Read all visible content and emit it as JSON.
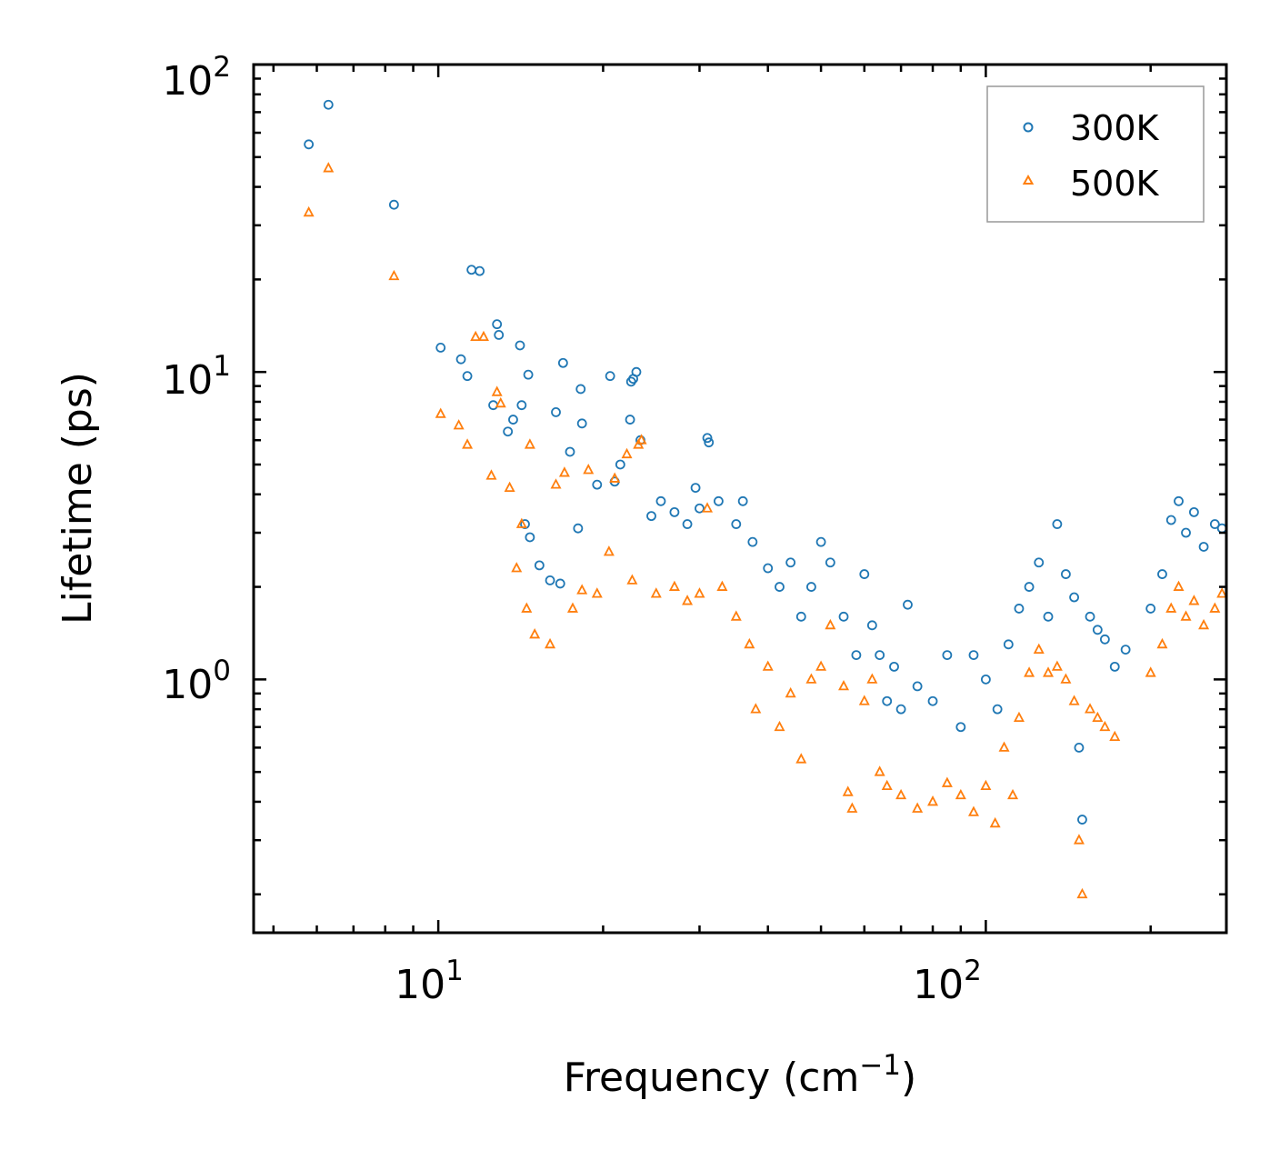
{
  "chart_data": {
    "type": "scatter",
    "title": "",
    "xlabel": "Frequency (cm",
    "xlabel_sup": "−1",
    "xlabel_end": ")",
    "ylabel": "Lifetime (ps)",
    "xscale": "log",
    "yscale": "log",
    "xlim": [
      4.6,
      275
    ],
    "ylim": [
      0.15,
      100
    ],
    "x_ticks": [
      {
        "value": 10,
        "base": "10",
        "exp": "1"
      },
      {
        "value": 100,
        "base": "10",
        "exp": "2"
      }
    ],
    "y_ticks": [
      {
        "value": 1,
        "base": "10",
        "exp": "0"
      },
      {
        "value": 10,
        "base": "10",
        "exp": "1"
      },
      {
        "value": 100,
        "base": "10",
        "exp": "2"
      }
    ],
    "legend_position": "top-right",
    "series": [
      {
        "name": "300K",
        "marker": "circle-open",
        "color": "#1f77b4",
        "points": [
          [
            5.8,
            55
          ],
          [
            6.3,
            74
          ],
          [
            8.3,
            35
          ],
          [
            10.1,
            12
          ],
          [
            11.0,
            11
          ],
          [
            11.3,
            9.7
          ],
          [
            11.5,
            21.5
          ],
          [
            11.9,
            21.3
          ],
          [
            12.6,
            7.8
          ],
          [
            12.8,
            14.3
          ],
          [
            12.9,
            13.2
          ],
          [
            13.4,
            6.4
          ],
          [
            13.7,
            7.0
          ],
          [
            14.1,
            12.2
          ],
          [
            14.2,
            7.8
          ],
          [
            14.4,
            3.2
          ],
          [
            14.6,
            9.8
          ],
          [
            14.7,
            2.9
          ],
          [
            15.3,
            2.35
          ],
          [
            16.0,
            2.1
          ],
          [
            16.4,
            7.4
          ],
          [
            16.7,
            2.05
          ],
          [
            16.9,
            10.7
          ],
          [
            17.4,
            5.5
          ],
          [
            18.0,
            3.1
          ],
          [
            18.2,
            8.8
          ],
          [
            18.3,
            6.8
          ],
          [
            19.5,
            4.3
          ],
          [
            20.6,
            9.7
          ],
          [
            21.0,
            4.4
          ],
          [
            21.5,
            5.0
          ],
          [
            22.4,
            7.0
          ],
          [
            22.5,
            9.3
          ],
          [
            22.7,
            9.5
          ],
          [
            23.0,
            10.0
          ],
          [
            23.4,
            6.0
          ],
          [
            24.5,
            3.4
          ],
          [
            25.5,
            3.8
          ],
          [
            27.0,
            3.5
          ],
          [
            28.5,
            3.2
          ],
          [
            29.5,
            4.2
          ],
          [
            30.0,
            3.6
          ],
          [
            31.0,
            6.1
          ],
          [
            31.2,
            5.9
          ],
          [
            32.5,
            3.8
          ],
          [
            35.0,
            3.2
          ],
          [
            36.0,
            3.8
          ],
          [
            37.5,
            2.8
          ],
          [
            40.0,
            2.3
          ],
          [
            42.0,
            2.0
          ],
          [
            44.0,
            2.4
          ],
          [
            46.0,
            1.6
          ],
          [
            48.0,
            2.0
          ],
          [
            50.0,
            2.8
          ],
          [
            52.0,
            2.4
          ],
          [
            55.0,
            1.6
          ],
          [
            58.0,
            1.2
          ],
          [
            60.0,
            2.2
          ],
          [
            62.0,
            1.5
          ],
          [
            64.0,
            1.2
          ],
          [
            66.0,
            0.85
          ],
          [
            68.0,
            1.1
          ],
          [
            70.0,
            0.8
          ],
          [
            72.0,
            1.75
          ],
          [
            75.0,
            0.95
          ],
          [
            80.0,
            0.85
          ],
          [
            85.0,
            1.2
          ],
          [
            90.0,
            0.7
          ],
          [
            95.0,
            1.2
          ],
          [
            100.0,
            1.0
          ],
          [
            105.0,
            0.8
          ],
          [
            110.0,
            1.3
          ],
          [
            115.0,
            1.7
          ],
          [
            120.0,
            2.0
          ],
          [
            125.0,
            2.4
          ],
          [
            130.0,
            1.6
          ],
          [
            135.0,
            3.2
          ],
          [
            140.0,
            2.2
          ],
          [
            145.0,
            1.85
          ],
          [
            148.0,
            0.6
          ],
          [
            150.0,
            0.35
          ],
          [
            155.0,
            1.6
          ],
          [
            160.0,
            1.45
          ],
          [
            165.0,
            1.35
          ],
          [
            172.0,
            1.1
          ],
          [
            180.0,
            1.25
          ],
          [
            200.0,
            1.7
          ],
          [
            210.0,
            2.2
          ],
          [
            218.0,
            3.3
          ],
          [
            225.0,
            3.8
          ],
          [
            232.0,
            3.0
          ],
          [
            240.0,
            3.5
          ],
          [
            250.0,
            2.7
          ],
          [
            262.0,
            3.2
          ],
          [
            270.0,
            3.1
          ]
        ]
      },
      {
        "name": "500K",
        "marker": "triangle-open",
        "color": "#ff7f0e",
        "points": [
          [
            5.8,
            33
          ],
          [
            6.3,
            46
          ],
          [
            8.3,
            20.5
          ],
          [
            10.1,
            7.3
          ],
          [
            10.9,
            6.7
          ],
          [
            11.3,
            5.8
          ],
          [
            11.7,
            13.0
          ],
          [
            12.1,
            13.0
          ],
          [
            12.5,
            4.6
          ],
          [
            12.8,
            8.6
          ],
          [
            13.0,
            7.9
          ],
          [
            13.5,
            4.2
          ],
          [
            13.9,
            2.3
          ],
          [
            14.2,
            3.2
          ],
          [
            14.5,
            1.7
          ],
          [
            14.7,
            5.8
          ],
          [
            15.0,
            1.4
          ],
          [
            16.0,
            1.3
          ],
          [
            16.4,
            4.3
          ],
          [
            17.0,
            4.7
          ],
          [
            17.6,
            1.7
          ],
          [
            18.3,
            1.95
          ],
          [
            18.8,
            4.8
          ],
          [
            19.5,
            1.9
          ],
          [
            20.5,
            2.6
          ],
          [
            21.0,
            4.5
          ],
          [
            22.1,
            5.4
          ],
          [
            22.6,
            2.1
          ],
          [
            23.2,
            5.8
          ],
          [
            23.5,
            6.0
          ],
          [
            25.0,
            1.9
          ],
          [
            27.0,
            2.0
          ],
          [
            28.5,
            1.8
          ],
          [
            30.0,
            1.9
          ],
          [
            31.0,
            3.6
          ],
          [
            33.0,
            2.0
          ],
          [
            35.0,
            1.6
          ],
          [
            37.0,
            1.3
          ],
          [
            38.0,
            0.8
          ],
          [
            40.0,
            1.1
          ],
          [
            42.0,
            0.7
          ],
          [
            44.0,
            0.9
          ],
          [
            46.0,
            0.55
          ],
          [
            48.0,
            1.0
          ],
          [
            50.0,
            1.1
          ],
          [
            52.0,
            1.5
          ],
          [
            55.0,
            0.95
          ],
          [
            56.0,
            0.43
          ],
          [
            57.0,
            0.38
          ],
          [
            60.0,
            0.85
          ],
          [
            62.0,
            1.0
          ],
          [
            64.0,
            0.5
          ],
          [
            66.0,
            0.45
          ],
          [
            70.0,
            0.42
          ],
          [
            75.0,
            0.38
          ],
          [
            80.0,
            0.4
          ],
          [
            85.0,
            0.46
          ],
          [
            90.0,
            0.42
          ],
          [
            95.0,
            0.37
          ],
          [
            100.0,
            0.45
          ],
          [
            104.0,
            0.34
          ],
          [
            108.0,
            0.6
          ],
          [
            112.0,
            0.42
          ],
          [
            115.0,
            0.75
          ],
          [
            120.0,
            1.05
          ],
          [
            125.0,
            1.25
          ],
          [
            130.0,
            1.05
          ],
          [
            135.0,
            1.1
          ],
          [
            140.0,
            1.0
          ],
          [
            145.0,
            0.85
          ],
          [
            148.0,
            0.3
          ],
          [
            150.0,
            0.2
          ],
          [
            155.0,
            0.8
          ],
          [
            160.0,
            0.75
          ],
          [
            165.0,
            0.7
          ],
          [
            172.0,
            0.65
          ],
          [
            200.0,
            1.05
          ],
          [
            210.0,
            1.3
          ],
          [
            218.0,
            1.7
          ],
          [
            225.0,
            2.0
          ],
          [
            232.0,
            1.6
          ],
          [
            240.0,
            1.8
          ],
          [
            250.0,
            1.5
          ],
          [
            262.0,
            1.7
          ],
          [
            270.0,
            1.9
          ]
        ]
      }
    ]
  }
}
